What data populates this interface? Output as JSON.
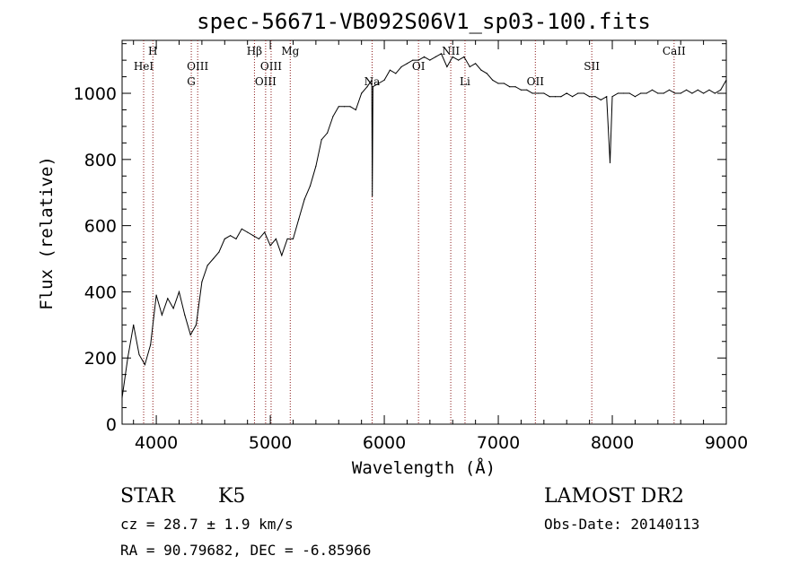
{
  "chart_data": {
    "type": "line",
    "title": "spec-56671-VB092S06V1_sp03-100.fits",
    "xlabel": "Wavelength (Å)",
    "ylabel": "Flux (relative)",
    "xlim": [
      3700,
      9000
    ],
    "ylim": [
      0,
      1160
    ],
    "xticks": [
      4000,
      5000,
      6000,
      7000,
      8000,
      9000
    ],
    "yticks": [
      0,
      200,
      400,
      600,
      800,
      1000
    ],
    "grid": false,
    "series": [
      {
        "values": [
          [
            3700,
            80
          ],
          [
            3750,
            200
          ],
          [
            3800,
            300
          ],
          [
            3850,
            210
          ],
          [
            3900,
            180
          ],
          [
            3950,
            240
          ],
          [
            4000,
            390
          ],
          [
            4050,
            330
          ],
          [
            4100,
            380
          ],
          [
            4150,
            350
          ],
          [
            4200,
            400
          ],
          [
            4250,
            330
          ],
          [
            4300,
            270
          ],
          [
            4350,
            300
          ],
          [
            4400,
            430
          ],
          [
            4450,
            480
          ],
          [
            4500,
            500
          ],
          [
            4550,
            520
          ],
          [
            4600,
            560
          ],
          [
            4650,
            570
          ],
          [
            4700,
            560
          ],
          [
            4750,
            590
          ],
          [
            4800,
            580
          ],
          [
            4850,
            570
          ],
          [
            4900,
            560
          ],
          [
            4950,
            580
          ],
          [
            5000,
            540
          ],
          [
            5050,
            560
          ],
          [
            5100,
            510
          ],
          [
            5150,
            560
          ],
          [
            5200,
            560
          ],
          [
            5250,
            620
          ],
          [
            5300,
            680
          ],
          [
            5350,
            720
          ],
          [
            5400,
            780
          ],
          [
            5450,
            860
          ],
          [
            5500,
            880
          ],
          [
            5550,
            930
          ],
          [
            5600,
            960
          ],
          [
            5650,
            960
          ],
          [
            5700,
            960
          ],
          [
            5750,
            950
          ],
          [
            5800,
            1000
          ],
          [
            5850,
            1020
          ],
          [
            5890,
            1040
          ],
          [
            5895,
            690
          ],
          [
            5900,
            1020
          ],
          [
            5950,
            1030
          ],
          [
            6000,
            1040
          ],
          [
            6050,
            1070
          ],
          [
            6100,
            1060
          ],
          [
            6150,
            1080
          ],
          [
            6200,
            1090
          ],
          [
            6250,
            1100
          ],
          [
            6300,
            1100
          ],
          [
            6350,
            1110
          ],
          [
            6400,
            1100
          ],
          [
            6450,
            1110
          ],
          [
            6500,
            1120
          ],
          [
            6550,
            1080
          ],
          [
            6600,
            1110
          ],
          [
            6650,
            1100
          ],
          [
            6700,
            1110
          ],
          [
            6750,
            1080
          ],
          [
            6800,
            1090
          ],
          [
            6850,
            1070
          ],
          [
            6900,
            1060
          ],
          [
            6950,
            1040
          ],
          [
            7000,
            1030
          ],
          [
            7050,
            1030
          ],
          [
            7100,
            1020
          ],
          [
            7150,
            1020
          ],
          [
            7200,
            1010
          ],
          [
            7250,
            1010
          ],
          [
            7300,
            1000
          ],
          [
            7350,
            1000
          ],
          [
            7400,
            1000
          ],
          [
            7450,
            990
          ],
          [
            7500,
            990
          ],
          [
            7550,
            990
          ],
          [
            7600,
            1000
          ],
          [
            7650,
            990
          ],
          [
            7700,
            1000
          ],
          [
            7750,
            1000
          ],
          [
            7800,
            990
          ],
          [
            7850,
            990
          ],
          [
            7900,
            980
          ],
          [
            7950,
            990
          ],
          [
            7980,
            790
          ],
          [
            8000,
            990
          ],
          [
            8050,
            1000
          ],
          [
            8100,
            1000
          ],
          [
            8150,
            1000
          ],
          [
            8200,
            990
          ],
          [
            8250,
            1000
          ],
          [
            8300,
            1000
          ],
          [
            8350,
            1010
          ],
          [
            8400,
            1000
          ],
          [
            8450,
            1000
          ],
          [
            8500,
            1010
          ],
          [
            8550,
            1000
          ],
          [
            8600,
            1000
          ],
          [
            8650,
            1010
          ],
          [
            8700,
            1000
          ],
          [
            8750,
            1010
          ],
          [
            8800,
            1000
          ],
          [
            8850,
            1010
          ],
          [
            8900,
            1000
          ],
          [
            8950,
            1010
          ],
          [
            9000,
            1040
          ]
        ]
      }
    ],
    "spectral_lines": [
      {
        "label": "HeI",
        "x": 3889,
        "row": 1
      },
      {
        "label": "H",
        "x": 3970,
        "row": 0
      },
      {
        "label": "OIII",
        "x": 4363,
        "row": 1
      },
      {
        "label": "G",
        "x": 4307,
        "row": 2
      },
      {
        "label": "Hβ",
        "x": 4861,
        "row": 0
      },
      {
        "label": "OIII",
        "x": 4959,
        "row": 2
      },
      {
        "label": "OIII",
        "x": 5007,
        "row": 1
      },
      {
        "label": "Mg",
        "x": 5175,
        "row": 0
      },
      {
        "label": "Na",
        "x": 5893,
        "row": 2
      },
      {
        "label": "OI",
        "x": 6300,
        "row": 1
      },
      {
        "label": "NII",
        "x": 6583,
        "row": 0
      },
      {
        "label": "Li",
        "x": 6708,
        "row": 2
      },
      {
        "label": "OII",
        "x": 7325,
        "row": 2
      },
      {
        "label": "SII",
        "x": 7820,
        "row": 1
      },
      {
        "label": "CaII",
        "x": 8542,
        "row": 0
      }
    ],
    "colors": {
      "line": "#000000",
      "marker": "#8b1a1a"
    }
  },
  "info": {
    "object_class": "STAR",
    "subclass": "K5",
    "survey": "LAMOST DR2",
    "cz": "cz = 28.7 ± 1.9 km/s",
    "obs_date": "Obs-Date: 20140113",
    "radec": "RA =  90.79682, DEC =  -6.85966"
  }
}
